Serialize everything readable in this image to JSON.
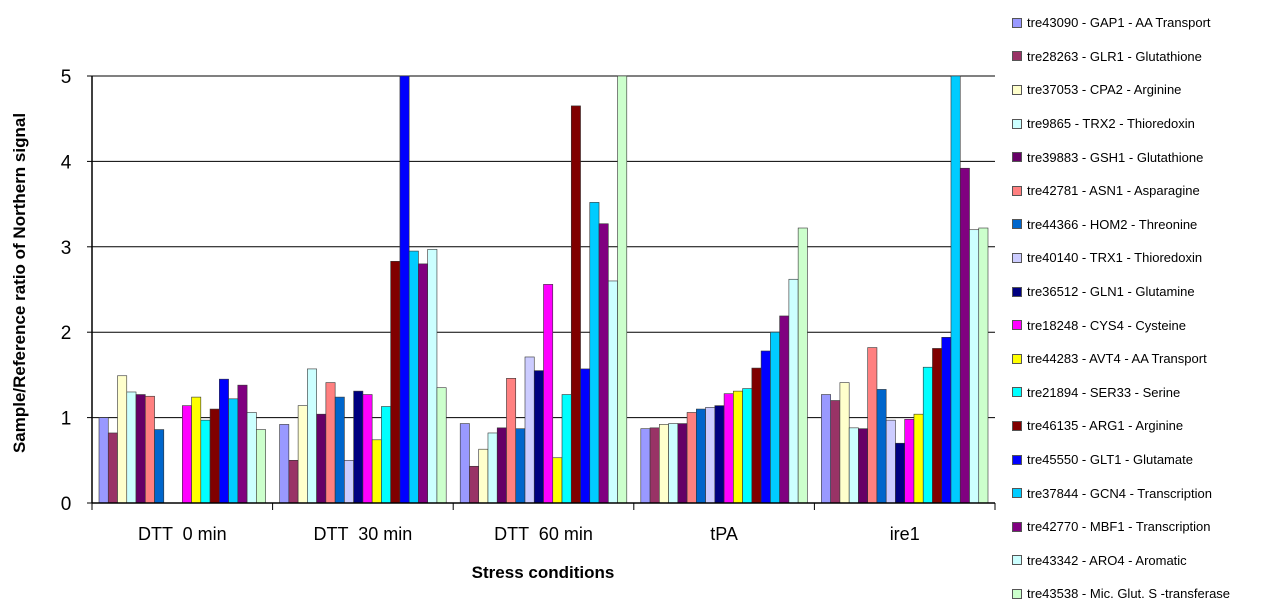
{
  "chart_data": {
    "type": "bar",
    "xlabel": "Stress conditions",
    "ylabel": "Sample/Reference ratio of Northern signal",
    "ylim": [
      0,
      5
    ],
    "yticks": [
      0,
      1,
      2,
      3,
      4,
      5
    ],
    "grid": true,
    "legend_position": "right",
    "categories": [
      "DTT  0 min",
      "DTT  30 min",
      "DTT  60 min",
      "tPA",
      "ire1"
    ],
    "series": [
      {
        "name": "tre43090 - GAP1 - AA Transport",
        "color": "#9999ff",
        "values": [
          1.0,
          0.92,
          0.93,
          0.87,
          1.27
        ]
      },
      {
        "name": "tre28263 - GLR1 - Glutathione",
        "color": "#993366",
        "values": [
          0.82,
          0.5,
          0.43,
          0.88,
          1.2
        ]
      },
      {
        "name": "tre37053 - CPA2 - Arginine",
        "color": "#ffffcc",
        "values": [
          1.49,
          1.14,
          0.63,
          0.92,
          1.41
        ]
      },
      {
        "name": "tre9865 - TRX2 - Thioredoxin",
        "color": "#ccffff",
        "values": [
          1.3,
          1.57,
          0.82,
          0.93,
          0.88
        ]
      },
      {
        "name": "tre39883 - GSH1 - Glutathione",
        "color": "#660066",
        "values": [
          1.27,
          1.04,
          0.88,
          0.93,
          0.87
        ]
      },
      {
        "name": "tre42781 - ASN1 - Asparagine",
        "color": "#ff8080",
        "values": [
          1.25,
          1.41,
          1.46,
          1.06,
          1.82
        ]
      },
      {
        "name": "tre44366 - HOM2 - Threonine",
        "color": "#0066cc",
        "values": [
          0.86,
          1.24,
          0.87,
          1.1,
          1.33
        ]
      },
      {
        "name": "tre40140 - TRX1 - Thioredoxin",
        "color": "#ccccff",
        "values": [
          0,
          0.5,
          1.71,
          1.12,
          0.97
        ]
      },
      {
        "name": "tre36512 - GLN1 - Glutamine",
        "color": "#000080",
        "values": [
          0,
          1.31,
          1.55,
          1.14,
          0.7
        ]
      },
      {
        "name": "tre18248 - CYS4 - Cysteine",
        "color": "#ff00ff",
        "values": [
          1.14,
          1.27,
          2.56,
          1.28,
          0.98
        ]
      },
      {
        "name": "tre44283 - AVT4 - AA Transport",
        "color": "#ffff00",
        "values": [
          1.24,
          0.74,
          0.53,
          1.31,
          1.04
        ]
      },
      {
        "name": "tre21894 - SER33 - Serine",
        "color": "#00ffff",
        "values": [
          0.97,
          1.13,
          1.27,
          1.34,
          1.59
        ]
      },
      {
        "name": "tre46135 - ARG1 - Arginine",
        "color": "#800000",
        "values": [
          1.1,
          2.83,
          4.65,
          1.58,
          1.81
        ]
      },
      {
        "name": "tre45550 - GLT1 - Glutamate",
        "color": "#0000ff",
        "values": [
          1.45,
          5.0,
          1.57,
          1.78,
          1.94
        ]
      },
      {
        "name": "tre37844 - GCN4 - Transcription",
        "color": "#00ccff",
        "values": [
          1.22,
          2.95,
          3.52,
          2.0,
          5.0
        ]
      },
      {
        "name": "tre42770 - MBF1 - Transcription",
        "color": "#800080",
        "values": [
          1.38,
          2.8,
          3.27,
          2.19,
          3.92
        ]
      },
      {
        "name": "tre43342 - ARO4 - Aromatic",
        "color": "#ccffff",
        "values": [
          1.06,
          2.97,
          2.6,
          2.62,
          3.2
        ]
      },
      {
        "name": "tre43538 - Mic. Glut. S -transferase",
        "color": "#ccffcc",
        "values": [
          0.86,
          1.35,
          5.0,
          3.22,
          3.22
        ]
      }
    ]
  }
}
